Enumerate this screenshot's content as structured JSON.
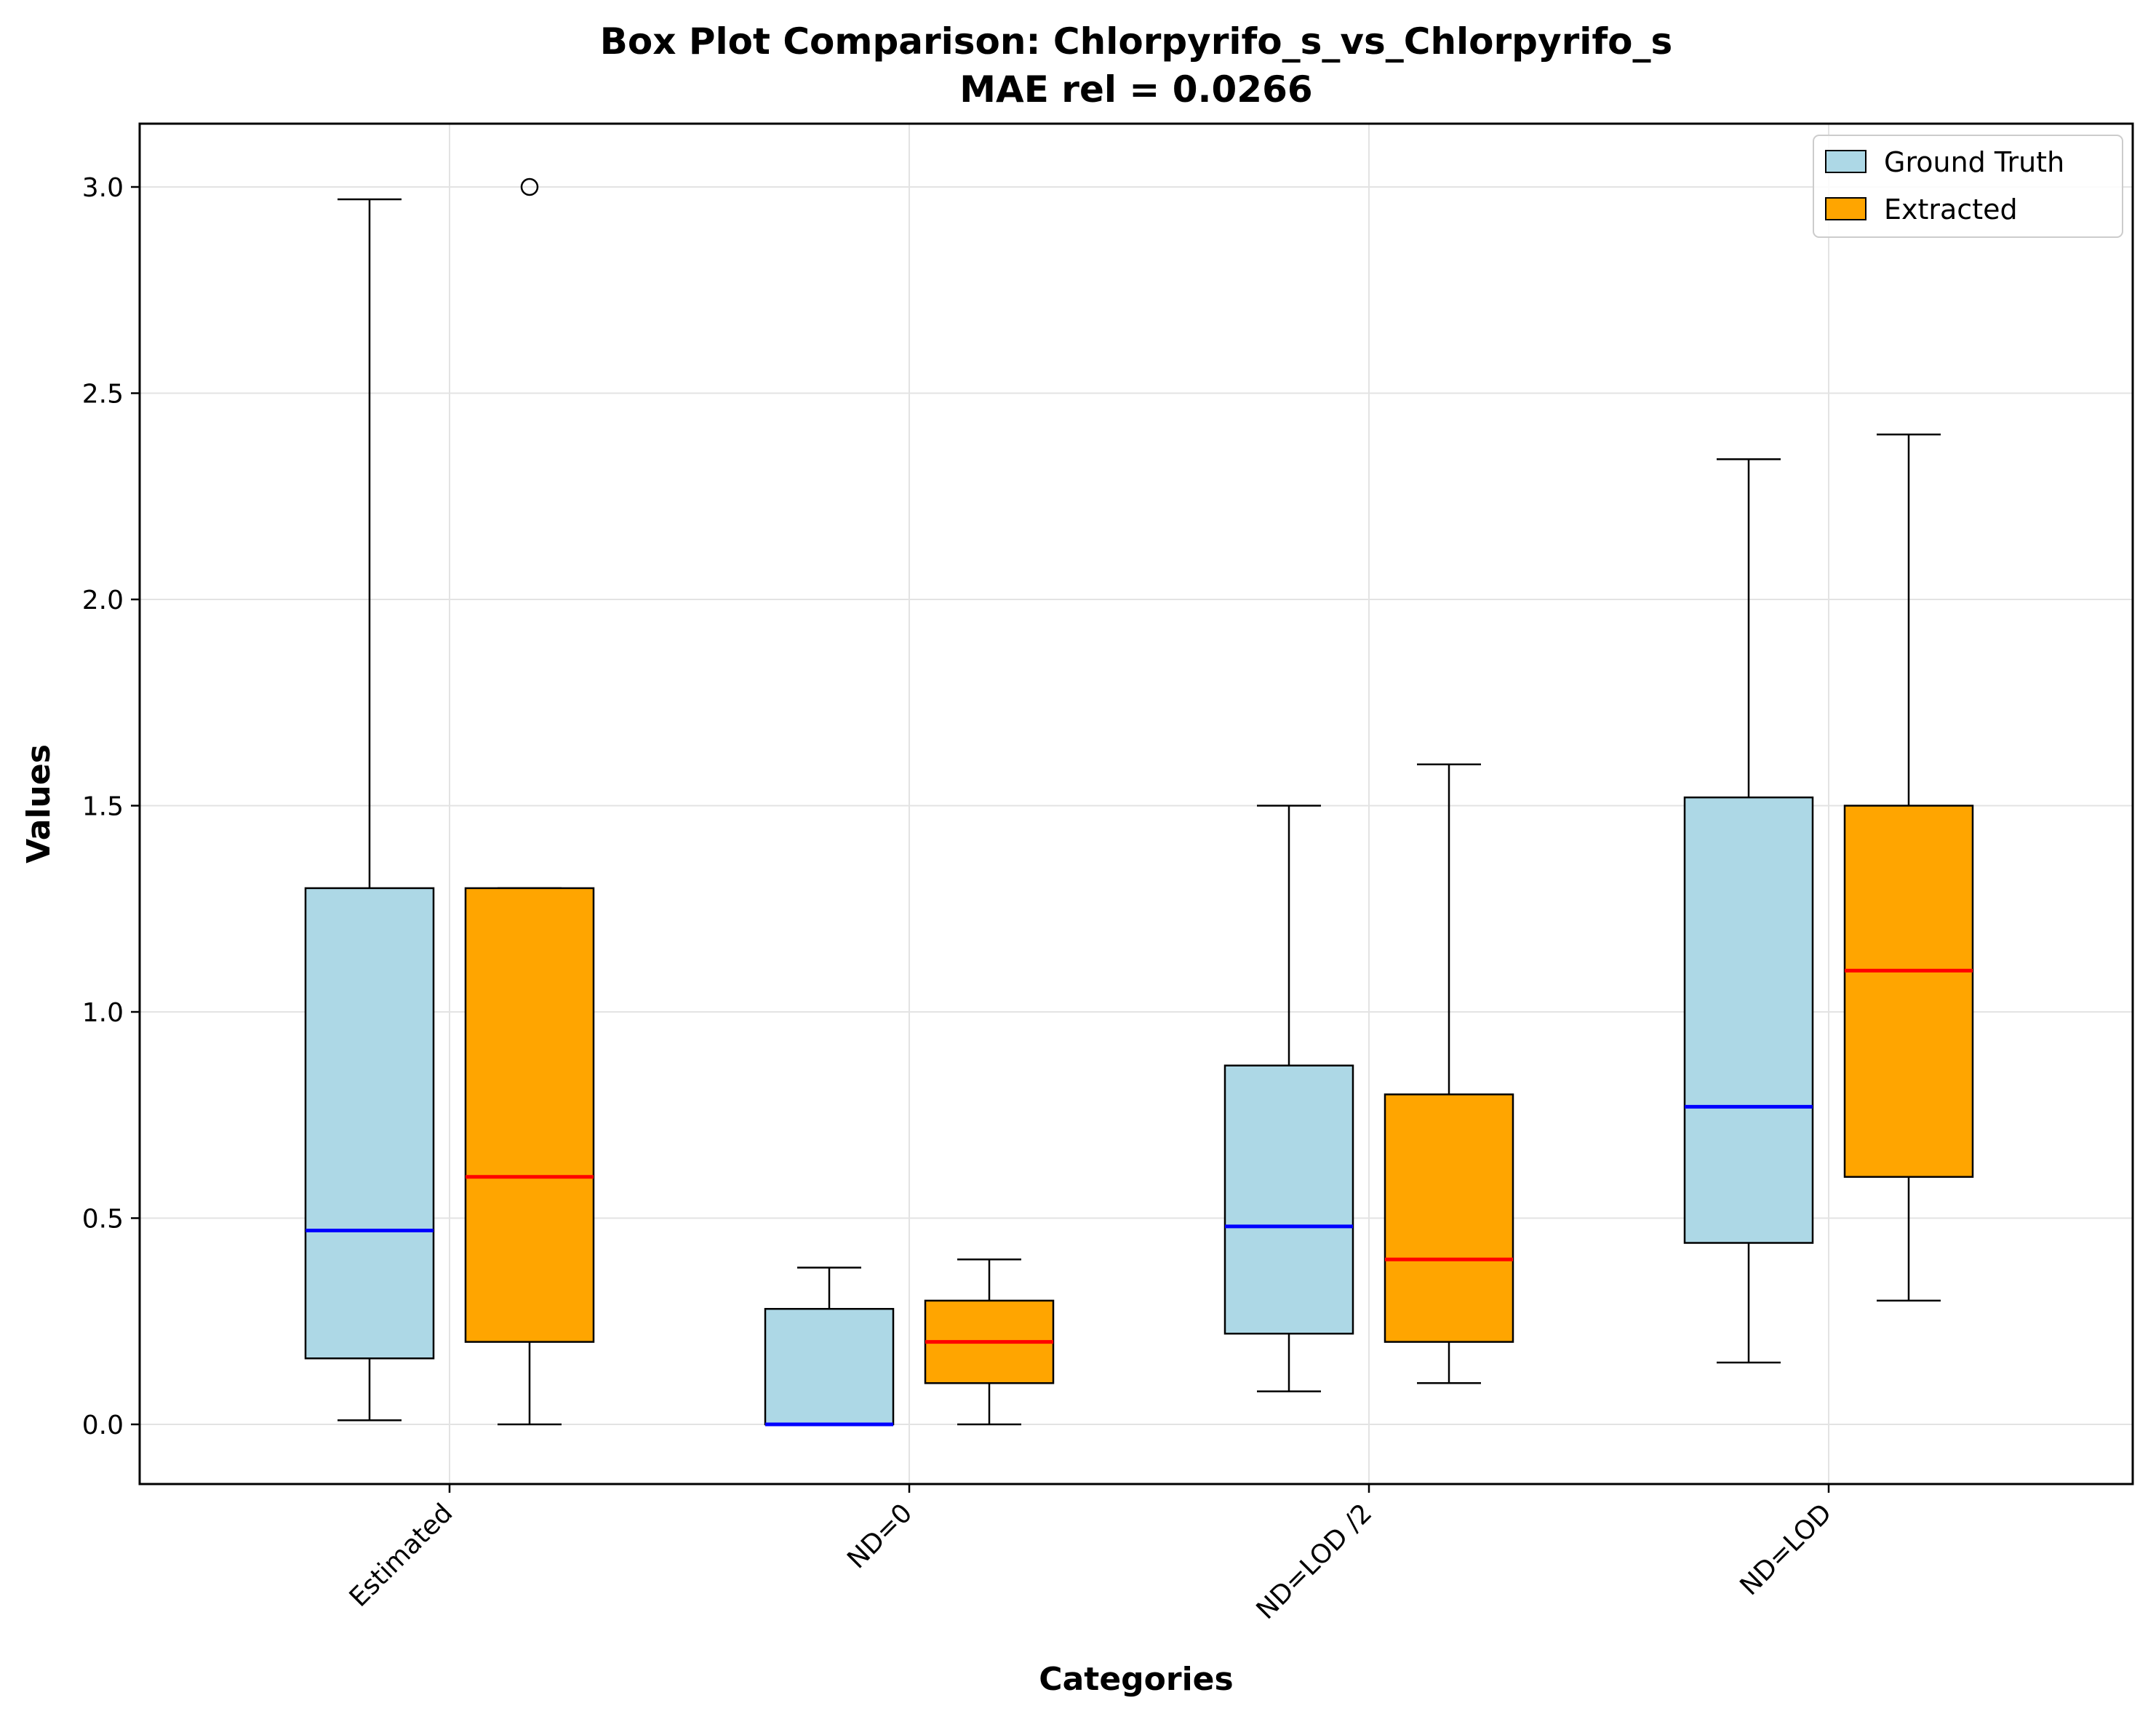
{
  "chart_data": {
    "type": "box",
    "title": "Box Plot Comparison: Chlorpyrifo_s_vs_Chlorpyrifo_s",
    "subtitle": "MAE rel = 0.0266",
    "xlabel": "Categories",
    "ylabel": "Values",
    "ylim": [
      -0.15,
      3.15
    ],
    "yticks": [
      0.0,
      0.5,
      1.0,
      1.5,
      2.0,
      2.5,
      3.0
    ],
    "ytick_labels": [
      "0.0",
      "0.5",
      "1.0",
      "1.5",
      "2.0",
      "2.5",
      "3.0"
    ],
    "categories": [
      "Estimated",
      "ND=0",
      "ND=LOD /2",
      "ND=LOD"
    ],
    "grid": true,
    "legend_position": "upper right",
    "series": [
      {
        "name": "Ground Truth",
        "fill": "#add8e6",
        "median_color": "#0000ff",
        "boxes": [
          {
            "whislo": 0.01,
            "q1": 0.16,
            "med": 0.47,
            "q3": 1.3,
            "whishi": 2.97,
            "fliers": []
          },
          {
            "whislo": 0.0,
            "q1": 0.0,
            "med": 0.0,
            "q3": 0.28,
            "whishi": 0.38,
            "fliers": []
          },
          {
            "whislo": 0.08,
            "q1": 0.22,
            "med": 0.48,
            "q3": 0.87,
            "whishi": 1.5,
            "fliers": []
          },
          {
            "whislo": 0.15,
            "q1": 0.44,
            "med": 0.77,
            "q3": 1.52,
            "whishi": 2.34,
            "fliers": []
          }
        ]
      },
      {
        "name": "Extracted",
        "fill": "#ffa500",
        "median_color": "#ff0000",
        "boxes": [
          {
            "whislo": 0.0,
            "q1": 0.2,
            "med": 0.6,
            "q3": 1.3,
            "whishi": 1.3,
            "fliers": [
              3.0
            ]
          },
          {
            "whislo": 0.0,
            "q1": 0.1,
            "med": 0.2,
            "q3": 0.3,
            "whishi": 0.4,
            "fliers": []
          },
          {
            "whislo": 0.1,
            "q1": 0.2,
            "med": 0.4,
            "q3": 0.8,
            "whishi": 1.6,
            "fliers": []
          },
          {
            "whislo": 0.3,
            "q1": 0.6,
            "med": 1.1,
            "q3": 1.5,
            "whishi": 2.4,
            "fliers": []
          }
        ]
      }
    ]
  }
}
